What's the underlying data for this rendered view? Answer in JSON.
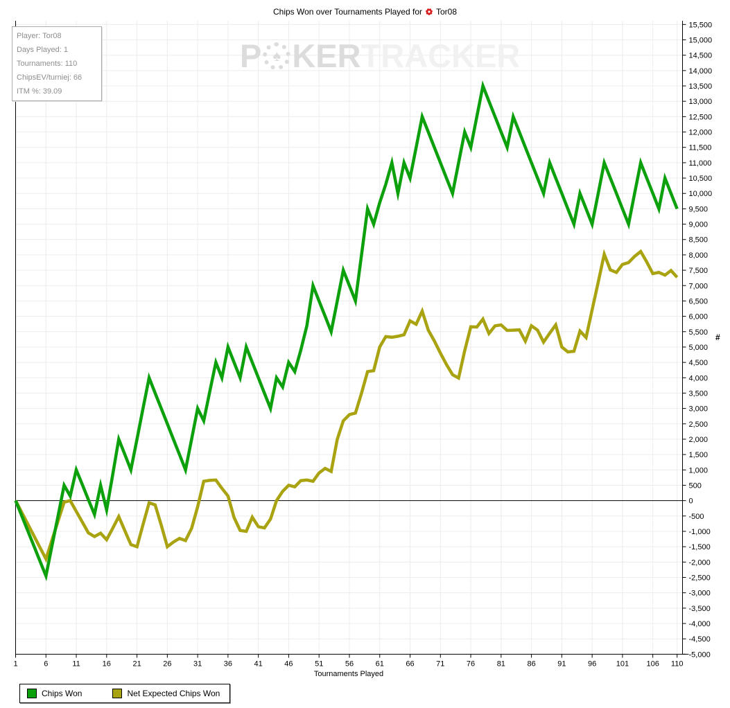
{
  "title": {
    "text": "Chips Won over Tournaments Played for",
    "player": "Tor08"
  },
  "info_box": {
    "lines": [
      "Player: Tor08",
      "Days Played: 1",
      "Tournaments: 110",
      "ChipsEV/turniej: 66",
      "ITM %: 39.09"
    ]
  },
  "watermark": {
    "part1": "P",
    "chip_glyph": "♠",
    "part2": "KER",
    "part3": "TRACKER"
  },
  "axes": {
    "x": {
      "label": "Tournaments Played",
      "ticks": [
        1,
        6,
        11,
        16,
        21,
        26,
        31,
        36,
        41,
        46,
        51,
        56,
        61,
        66,
        71,
        76,
        81,
        86,
        91,
        96,
        101,
        106,
        110
      ]
    },
    "y": {
      "label": "#",
      "min": -5000,
      "max": 15500,
      "step": 500
    }
  },
  "legend": {
    "items": [
      {
        "label": "Chips Won",
        "color": "#0ca00c"
      },
      {
        "label": "Net Expected Chips Won",
        "color": "#a9a311"
      }
    ]
  },
  "colors": {
    "grid": "#ececec",
    "axis": "#000000",
    "zero_line": "#000000",
    "chips_won": "#0ca00c",
    "net_expected": "#a9a311"
  },
  "chart_data": {
    "type": "line",
    "title": "Chips Won over Tournaments Played for Tor08",
    "xlabel": "Tournaments Played",
    "ylabel": "#",
    "xlim": [
      1,
      110
    ],
    "ylim": [
      -5000,
      15500
    ],
    "ytick_step": 500,
    "xticks": [
      1,
      6,
      11,
      16,
      21,
      26,
      31,
      36,
      41,
      46,
      51,
      56,
      61,
      66,
      71,
      76,
      81,
      86,
      91,
      96,
      101,
      106,
      110
    ],
    "grid": true,
    "legend_position": "bottom-left",
    "x": [
      1,
      2,
      3,
      4,
      5,
      6,
      7,
      8,
      9,
      10,
      11,
      12,
      13,
      14,
      15,
      16,
      17,
      18,
      19,
      20,
      21,
      22,
      23,
      24,
      25,
      26,
      27,
      28,
      29,
      30,
      31,
      32,
      33,
      34,
      35,
      36,
      37,
      38,
      39,
      40,
      41,
      42,
      43,
      44,
      45,
      46,
      47,
      48,
      49,
      50,
      51,
      52,
      53,
      54,
      55,
      56,
      57,
      58,
      59,
      60,
      61,
      62,
      63,
      64,
      65,
      66,
      67,
      68,
      69,
      70,
      71,
      72,
      73,
      74,
      75,
      76,
      77,
      78,
      79,
      80,
      81,
      82,
      83,
      84,
      85,
      86,
      87,
      88,
      89,
      90,
      91,
      92,
      93,
      94,
      95,
      96,
      97,
      98,
      99,
      100,
      101,
      102,
      103,
      104,
      105,
      106,
      107,
      108,
      109,
      110
    ],
    "series": [
      {
        "name": "Chips Won",
        "color": "#0ca00c",
        "values": [
          0,
          -490,
          -980,
          -1470,
          -1960,
          -2450,
          -1470,
          -490,
          500,
          150,
          1000,
          520,
          30,
          -450,
          500,
          -300,
          850,
          2000,
          1500,
          1000,
          2000,
          3000,
          4000,
          3500,
          3000,
          2500,
          2000,
          1500,
          1000,
          2000,
          3000,
          2600,
          3550,
          4500,
          4000,
          5000,
          4500,
          4000,
          5000,
          4500,
          4000,
          3500,
          3000,
          4000,
          3700,
          4500,
          4200,
          4900,
          5700,
          7000,
          6500,
          6000,
          5500,
          6500,
          7500,
          7000,
          6500,
          8000,
          9500,
          9000,
          9700,
          10300,
          11000,
          10000,
          11000,
          10500,
          11500,
          12500,
          12000,
          11500,
          11000,
          10500,
          10000,
          11000,
          12000,
          11500,
          12500,
          13500,
          13000,
          12500,
          12000,
          11500,
          12500,
          12000,
          11500,
          11000,
          10500,
          10000,
          11000,
          10500,
          10000,
          9500,
          9000,
          10000,
          9500,
          9000,
          10000,
          11000,
          10500,
          10000,
          9500,
          9000,
          10000,
          11000,
          10500,
          10000,
          9500,
          10500,
          10000,
          9500
        ]
      },
      {
        "name": "Net Expected Chips Won",
        "color": "#a9a311",
        "values": [
          0,
          -380,
          -760,
          -1140,
          -1520,
          -1900,
          -1280,
          -660,
          -50,
          0,
          -350,
          -700,
          -1050,
          -1170,
          -1060,
          -1270,
          -900,
          -520,
          -980,
          -1430,
          -1500,
          -780,
          -70,
          -140,
          -800,
          -1500,
          -1350,
          -1230,
          -1300,
          -900,
          -200,
          630,
          660,
          670,
          400,
          150,
          -550,
          -970,
          -1000,
          -540,
          -850,
          -890,
          -600,
          0,
          300,
          500,
          450,
          650,
          670,
          630,
          900,
          1050,
          950,
          2000,
          2600,
          2800,
          2850,
          3500,
          4200,
          4230,
          5000,
          5340,
          5320,
          5350,
          5400,
          5850,
          5740,
          6170,
          5550,
          5200,
          4800,
          4430,
          4100,
          3990,
          4880,
          5660,
          5650,
          5910,
          5440,
          5690,
          5720,
          5540,
          5550,
          5560,
          5190,
          5690,
          5550,
          5160,
          5450,
          5720,
          5000,
          4840,
          4860,
          5520,
          5310,
          6210,
          7110,
          8020,
          7510,
          7430,
          7690,
          7750,
          7950,
          8110,
          7770,
          7390,
          7430,
          7340,
          7490,
          7270
        ]
      }
    ]
  }
}
